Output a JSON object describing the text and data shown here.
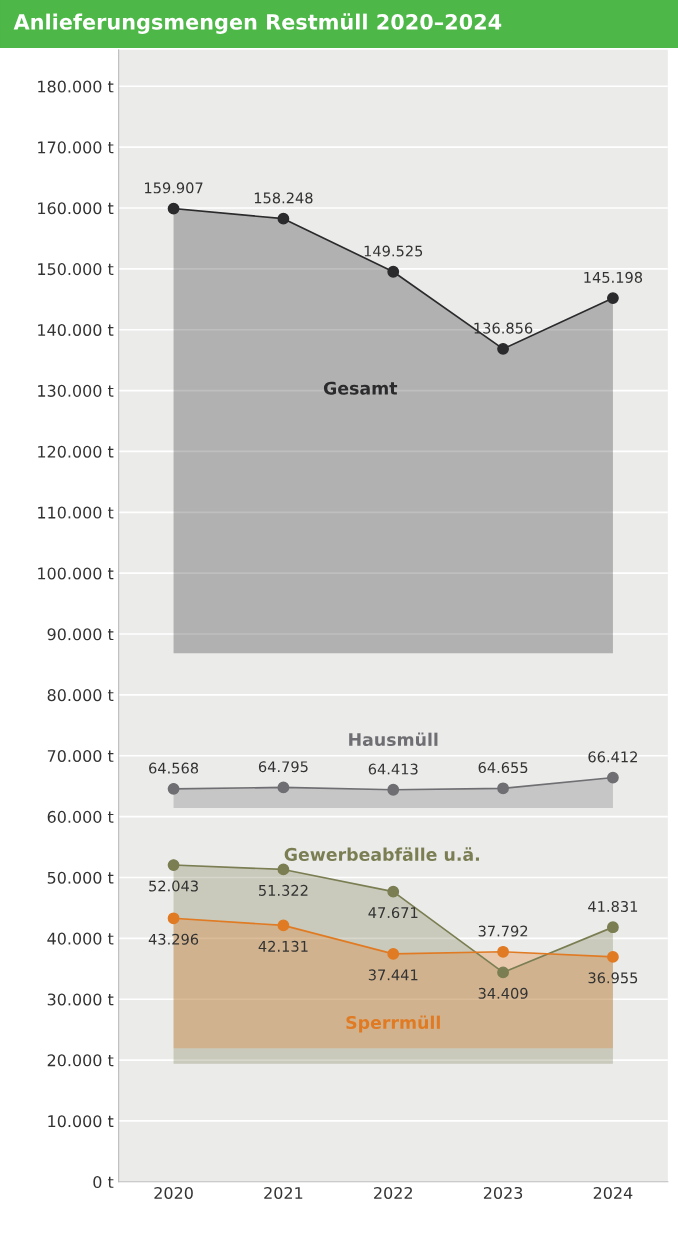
{
  "chart_data": {
    "type": "area",
    "title": "Anlieferungsmengen Restmüll 2020–2024",
    "categories": [
      "2020",
      "2021",
      "2022",
      "2023",
      "2024"
    ],
    "series": [
      {
        "name": "Gesamt",
        "color": "#2b2b2d",
        "values": [
          159907,
          158248,
          149525,
          136856,
          145198
        ],
        "value_labels": [
          "159.907",
          "158.248",
          "149.525",
          "136.856",
          "145.198"
        ]
      },
      {
        "name": "Hausmüll",
        "color": "#6f6f73",
        "values": [
          64568,
          64795,
          64413,
          64655,
          66412
        ],
        "value_labels": [
          "64.568",
          "64.795",
          "64.413",
          "64.655",
          "66.412"
        ]
      },
      {
        "name": "Gewerbeabfälle u.ä.",
        "color": "#7b7e52",
        "values": [
          52043,
          51322,
          47671,
          34409,
          41831
        ],
        "value_labels": [
          "52.043",
          "51.322",
          "47.671",
          "34.409",
          "41.831"
        ]
      },
      {
        "name": "Sperrmüll",
        "color": "#e07b24",
        "values": [
          43296,
          42131,
          37441,
          37792,
          36955
        ],
        "value_labels": [
          "43.296",
          "42.131",
          "37.441",
          "37.792",
          "36.955"
        ]
      }
    ],
    "ylim": [
      0,
      186000
    ],
    "yticks": [
      {
        "value": 0,
        "label": "0 t"
      },
      {
        "value": 10000,
        "label": "10.000 t"
      },
      {
        "value": 20000,
        "label": "20.000 t"
      },
      {
        "value": 30000,
        "label": "30.000 t"
      },
      {
        "value": 40000,
        "label": "40.000 t"
      },
      {
        "value": 50000,
        "label": "50.000 t"
      },
      {
        "value": 60000,
        "label": "60.000 t"
      },
      {
        "value": 70000,
        "label": "70.000 t"
      },
      {
        "value": 80000,
        "label": "80.000 t"
      },
      {
        "value": 90000,
        "label": "90.000 t"
      },
      {
        "value": 100000,
        "label": "100.000 t"
      },
      {
        "value": 110000,
        "label": "110.000 t"
      },
      {
        "value": 120000,
        "label": "120.000 t"
      },
      {
        "value": 130000,
        "label": "130.000 t"
      },
      {
        "value": 140000,
        "label": "140.000 t"
      },
      {
        "value": 150000,
        "label": "150.000 t"
      },
      {
        "value": 160000,
        "label": "160.000 t"
      },
      {
        "value": 170000,
        "label": "170.000 t"
      },
      {
        "value": 180000,
        "label": "180.000 t"
      }
    ],
    "grid": "y",
    "data_labels": true
  }
}
